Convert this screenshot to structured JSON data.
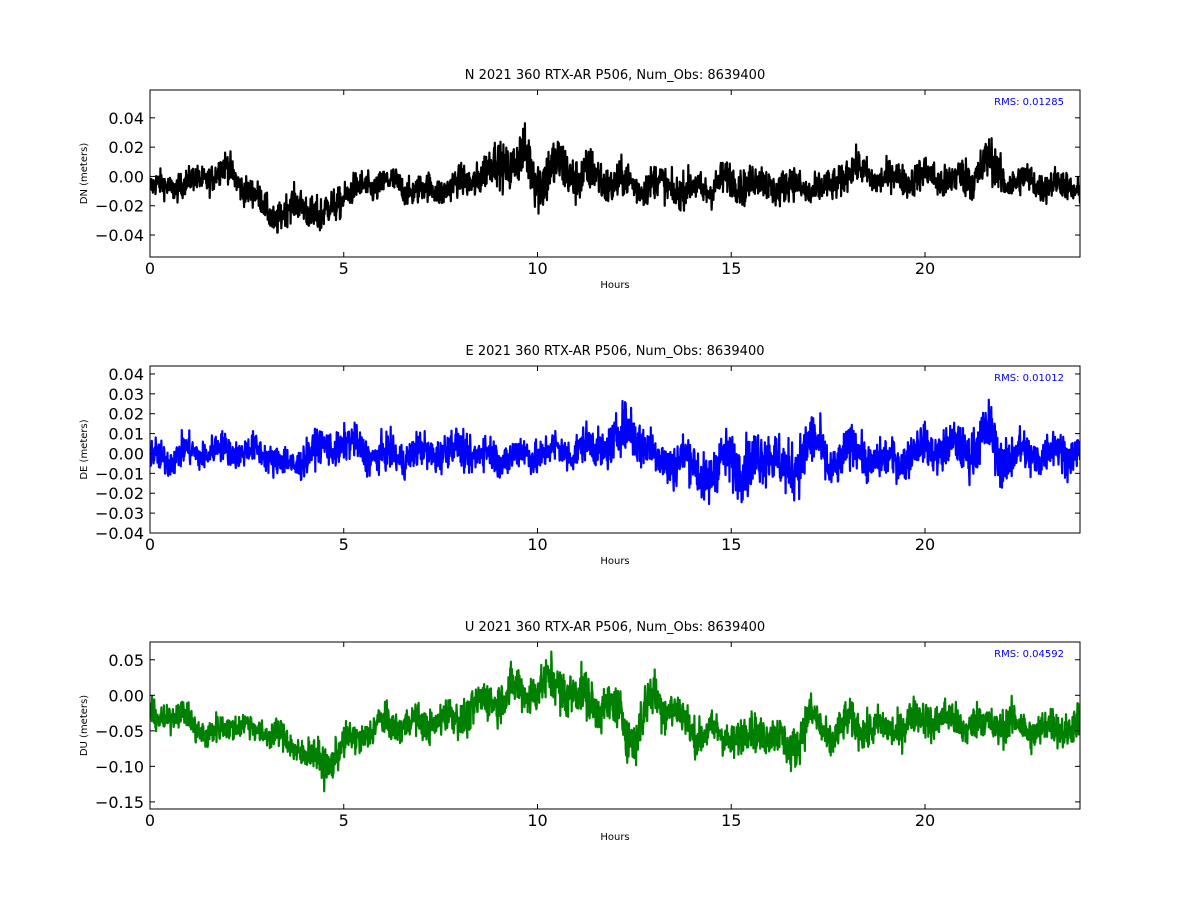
{
  "chart_data": [
    {
      "type": "line",
      "title": "N 2021 360 RTX-AR  P506, Num_Obs: 8639400",
      "xlabel": "Hours",
      "ylabel": "DN (meters)",
      "xlim": [
        0,
        24
      ],
      "ylim": [
        -0.055,
        0.059
      ],
      "xticks": [
        0,
        5,
        10,
        15,
        20
      ],
      "xtick_labels": [
        "0",
        "5",
        "10",
        "15",
        "20"
      ],
      "yticks": [
        -0.04,
        -0.02,
        0.0,
        0.02,
        0.04
      ],
      "ytick_labels": [
        "−0.04",
        "−0.02",
        "0.00",
        "0.02",
        "0.04"
      ],
      "color": "#000000",
      "rms_label": "RMS:  0.01285",
      "rms_color": "#0000ff",
      "grid": false,
      "series": [
        {
          "x": [
            0,
            1,
            2,
            3,
            3.2,
            4,
            4.4,
            5,
            6,
            7,
            8,
            9,
            9.6,
            10,
            10.2,
            11,
            12,
            12.5,
            13,
            14,
            15,
            16,
            17,
            17.5,
            18,
            19,
            20,
            21,
            21.6,
            22,
            23,
            24
          ],
          "center": [
            -0.008,
            -0.005,
            0.005,
            -0.022,
            -0.028,
            -0.018,
            -0.03,
            -0.012,
            -0.004,
            -0.01,
            -0.006,
            0.008,
            0.012,
            0.0,
            0.005,
            0.002,
            -0.004,
            -0.006,
            -0.005,
            -0.01,
            -0.003,
            -0.006,
            -0.008,
            -0.01,
            0.005,
            -0.002,
            0.0,
            -0.003,
            0.01,
            -0.002,
            -0.005,
            -0.008
          ],
          "halfwidth": [
            0.012,
            0.012,
            0.014,
            0.013,
            0.014,
            0.016,
            0.018,
            0.014,
            0.013,
            0.013,
            0.014,
            0.02,
            0.024,
            0.03,
            0.028,
            0.022,
            0.018,
            0.016,
            0.016,
            0.016,
            0.016,
            0.016,
            0.015,
            0.015,
            0.015,
            0.014,
            0.015,
            0.018,
            0.022,
            0.016,
            0.014,
            0.013
          ]
        }
      ]
    },
    {
      "type": "line",
      "title": "E 2021 360 RTX-AR  P506, Num_Obs: 8639400",
      "xlabel": "Hours",
      "ylabel": "DE (meters)",
      "xlim": [
        0,
        24
      ],
      "ylim": [
        -0.04,
        0.044
      ],
      "xticks": [
        0,
        5,
        10,
        15,
        20
      ],
      "xtick_labels": [
        "0",
        "5",
        "10",
        "15",
        "20"
      ],
      "yticks": [
        -0.04,
        -0.03,
        -0.02,
        -0.01,
        0.0,
        0.01,
        0.02,
        0.03,
        0.04
      ],
      "ytick_labels": [
        "−0.04",
        "−0.03",
        "−0.02",
        "−0.01",
        "0.00",
        "0.01",
        "0.02",
        "0.03",
        "0.04"
      ],
      "color": "#0000ff",
      "rms_label": "RMS:  0.01012",
      "rms_color": "#0000ff",
      "grid": false,
      "series": [
        {
          "x": [
            0,
            1,
            2,
            3,
            3.7,
            4,
            5,
            6,
            7,
            8,
            9,
            10,
            11,
            12,
            12.4,
            13,
            14,
            14.5,
            15,
            15.5,
            16,
            16.5,
            17,
            17.5,
            18,
            19,
            20,
            21,
            21.7,
            22,
            23,
            24
          ],
          "center": [
            -0.003,
            0.0,
            0.002,
            0.0,
            -0.008,
            0.0,
            0.005,
            -0.002,
            0.0,
            0.002,
            -0.002,
            0.0,
            0.002,
            0.005,
            0.015,
            -0.002,
            -0.005,
            -0.012,
            0.0,
            -0.01,
            0.005,
            -0.015,
            0.01,
            -0.008,
            0.002,
            -0.005,
            0.003,
            0.002,
            0.008,
            -0.002,
            0.0,
            0.002
          ],
          "halfwidth": [
            0.011,
            0.011,
            0.01,
            0.01,
            0.012,
            0.011,
            0.012,
            0.012,
            0.012,
            0.012,
            0.012,
            0.012,
            0.012,
            0.014,
            0.018,
            0.015,
            0.016,
            0.018,
            0.018,
            0.02,
            0.018,
            0.02,
            0.02,
            0.015,
            0.014,
            0.013,
            0.013,
            0.015,
            0.02,
            0.016,
            0.014,
            0.013
          ]
        }
      ]
    },
    {
      "type": "line",
      "title": "U 2021 360 RTX-AR  P506, Num_Obs: 8639400",
      "xlabel": "Hours",
      "ylabel": "DU (meters)",
      "xlim": [
        0,
        24
      ],
      "ylim": [
        -0.16,
        0.075
      ],
      "xticks": [
        0,
        5,
        10,
        15,
        20
      ],
      "xtick_labels": [
        "0",
        "5",
        "10",
        "15",
        "20"
      ],
      "yticks": [
        -0.15,
        -0.1,
        -0.05,
        0.0,
        0.05
      ],
      "ytick_labels": [
        "−0.15",
        "−0.10",
        "−0.05",
        "0.00",
        "0.05"
      ],
      "color": "#008000",
      "rms_label": "RMS:  0.04592",
      "rms_color": "#0000ff",
      "grid": false,
      "series": [
        {
          "x": [
            0,
            1,
            1.5,
            2,
            3,
            4,
            4.5,
            5,
            6,
            7,
            8,
            9,
            10,
            10.5,
            11,
            12,
            12.5,
            13,
            13.5,
            14,
            15,
            16,
            16.5,
            17,
            17.5,
            18,
            19,
            20,
            21,
            22,
            23,
            24
          ],
          "center": [
            -0.03,
            -0.03,
            -0.06,
            -0.04,
            -0.05,
            -0.08,
            -0.1,
            -0.07,
            -0.04,
            -0.04,
            -0.03,
            0.0,
            0.01,
            0.02,
            0.0,
            -0.02,
            -0.06,
            0.0,
            -0.02,
            -0.05,
            -0.06,
            -0.05,
            -0.08,
            -0.03,
            -0.06,
            -0.04,
            -0.05,
            -0.03,
            -0.04,
            -0.04,
            -0.05,
            -0.04
          ],
          "halfwidth": [
            0.025,
            0.025,
            0.03,
            0.025,
            0.025,
            0.03,
            0.035,
            0.03,
            0.03,
            0.03,
            0.035,
            0.04,
            0.04,
            0.045,
            0.045,
            0.04,
            0.05,
            0.045,
            0.04,
            0.035,
            0.035,
            0.035,
            0.04,
            0.04,
            0.035,
            0.035,
            0.035,
            0.035,
            0.035,
            0.035,
            0.035,
            0.035
          ]
        }
      ]
    }
  ]
}
